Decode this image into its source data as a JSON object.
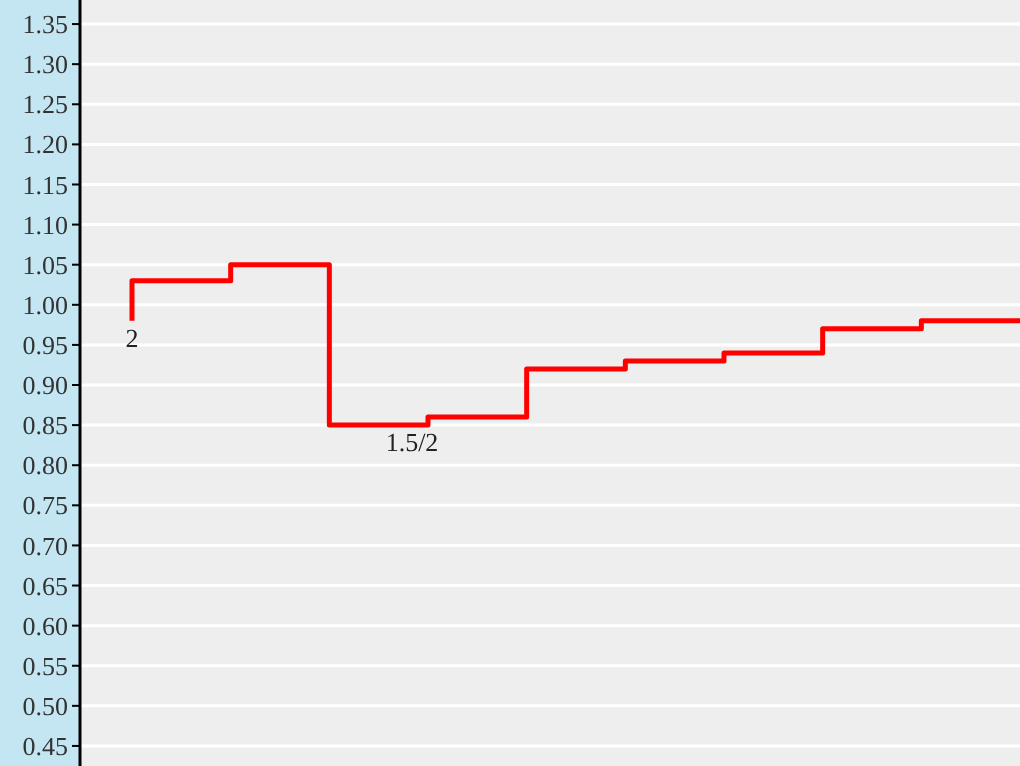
{
  "chart_data": {
    "type": "step",
    "categories": [
      null,
      null,
      null,
      null,
      null,
      null,
      null,
      null,
      null,
      null
    ],
    "series": [
      {
        "color": "#ff0000",
        "values": [
          0.98,
          1.03,
          1.05,
          0.85,
          0.86,
          0.92,
          0.93,
          0.94,
          0.97,
          0.98
        ]
      }
    ],
    "annotations": [
      {
        "text": "2",
        "y": 0.98
      },
      {
        "text": "1.5/2",
        "y": 0.85
      }
    ],
    "ylim": [
      0.425,
      1.38
    ],
    "yticks": [
      {
        "value": 1.35,
        "label": "1.35"
      },
      {
        "value": 1.3,
        "label": "1.30"
      },
      {
        "value": 1.25,
        "label": "1.25"
      },
      {
        "value": 1.2,
        "label": "1.20"
      },
      {
        "value": 1.15,
        "label": "1.15"
      },
      {
        "value": 1.1,
        "label": "1.10"
      },
      {
        "value": 1.05,
        "label": "1.05"
      },
      {
        "value": 1.0,
        "label": "1.00"
      },
      {
        "value": 0.95,
        "label": "0.95"
      },
      {
        "value": 0.9,
        "label": "0.90"
      },
      {
        "value": 0.85,
        "label": "0.85"
      },
      {
        "value": 0.8,
        "label": "0.80"
      },
      {
        "value": 0.75,
        "label": "0.75"
      },
      {
        "value": 0.7,
        "label": "0.70"
      },
      {
        "value": 0.65,
        "label": "0.65"
      },
      {
        "value": 0.6,
        "label": "0.60"
      },
      {
        "value": 0.55,
        "label": "0.55"
      },
      {
        "value": 0.5,
        "label": "0.50"
      },
      {
        "value": 0.45,
        "label": "0.45"
      }
    ],
    "grid": "y",
    "tick_labels": "y",
    "line_style": "solid"
  }
}
